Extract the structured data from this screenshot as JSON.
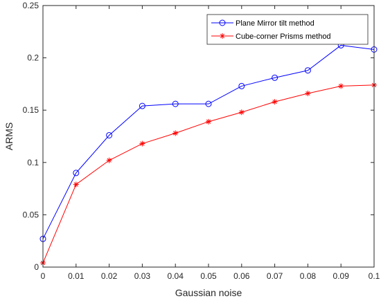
{
  "chart_data": {
    "type": "line",
    "title": "",
    "xlabel": "Gaussian noise",
    "ylabel": "ARMS",
    "xlim": [
      0,
      0.1
    ],
    "ylim": [
      0,
      0.25
    ],
    "x": [
      0,
      0.01,
      0.02,
      0.03,
      0.04,
      0.05,
      0.06,
      0.07,
      0.08,
      0.09,
      0.1
    ],
    "xticks": [
      "0",
      "0.01",
      "0.02",
      "0.03",
      "0.04",
      "0.05",
      "0.06",
      "0.07",
      "0.08",
      "0.09",
      "0.1"
    ],
    "yticks": [
      "0",
      "0.05",
      "0.1",
      "0.15",
      "0.2",
      "0.25"
    ],
    "yticks_values": [
      0,
      0.05,
      0.1,
      0.15,
      0.2,
      0.25
    ],
    "grid": false,
    "legend_position": "top-right",
    "series": [
      {
        "name": "Plane Mirror tilt method",
        "color": "#0000ff",
        "marker": "circle",
        "values": [
          0.027,
          0.09,
          0.126,
          0.154,
          0.156,
          0.156,
          0.173,
          0.181,
          0.188,
          0.212,
          0.208
        ]
      },
      {
        "name": "Cube-corner Prisms method",
        "color": "#ff0000",
        "marker": "asterisk",
        "values": [
          0.004,
          0.079,
          0.102,
          0.118,
          0.128,
          0.139,
          0.148,
          0.158,
          0.166,
          0.173,
          0.174
        ]
      }
    ]
  }
}
